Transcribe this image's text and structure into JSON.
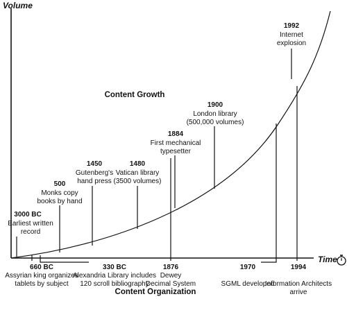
{
  "axes": {
    "y_label": "Volume",
    "x_label": "Time"
  },
  "headings": {
    "top": "Content Growth",
    "bottom": "Content Organization"
  },
  "growth_events": [
    {
      "year": "3000 BC",
      "lines": [
        "Earliest written",
        "record"
      ]
    },
    {
      "year": "500",
      "lines": [
        "Monks copy",
        "books by hand"
      ]
    },
    {
      "year": "1450",
      "lines": [
        "Gutenberg's",
        "hand press"
      ]
    },
    {
      "year": "1480",
      "lines": [
        "Vatican library",
        "(3500 volumes)"
      ]
    },
    {
      "year": "1884",
      "lines": [
        "First mechanical",
        "typesetter"
      ]
    },
    {
      "year": "1900",
      "lines": [
        "London library",
        "(500,000 volumes)"
      ]
    },
    {
      "year": "1992",
      "lines": [
        "Internet",
        "explosion"
      ]
    }
  ],
  "organization_events": [
    {
      "year": "660 BC",
      "lines": [
        "Assyrian king organizes",
        "tablets by subject"
      ]
    },
    {
      "year": "330 BC",
      "lines": [
        "Alexandria Library includes",
        "120 scroll bibliography"
      ]
    },
    {
      "year": "1876",
      "lines": [
        "Dewey",
        "Decimal System"
      ]
    },
    {
      "year": "1970",
      "lines": [
        "SGML developed"
      ]
    },
    {
      "year": "1994",
      "lines": [
        "Information Architects",
        "arrive"
      ]
    }
  ],
  "icons": {
    "time_marker": "stopwatch-icon"
  }
}
